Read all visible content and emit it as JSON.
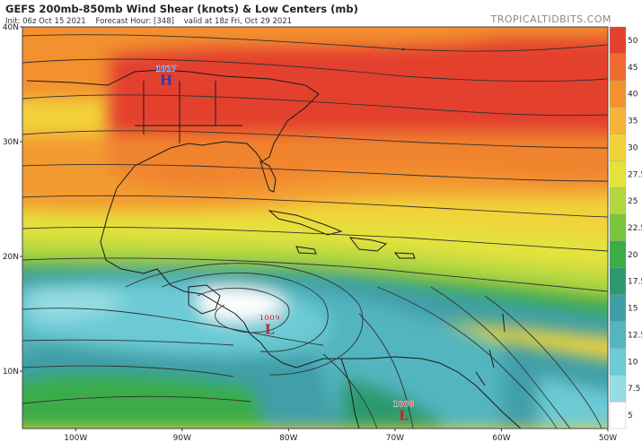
{
  "header": {
    "title": "GEFS 200mb-850mb Wind Shear (knots) & Low Centers (mb)",
    "init": "Init: 06z Oct 15 2021",
    "forecast_hour": "Forecast Hour: [348]",
    "valid": "valid at 18z Fri, Oct 29 2021",
    "brand": "TROPICALTIDBITS.COM"
  },
  "map": {
    "lon_range": [
      -105,
      -50
    ],
    "lat_range": [
      5,
      40
    ],
    "lat_ticks": [
      {
        "value": 40,
        "label": "40N"
      },
      {
        "value": 30,
        "label": "30N"
      },
      {
        "value": 20,
        "label": "20N"
      },
      {
        "value": 10,
        "label": "10N"
      }
    ],
    "lon_ticks": [
      {
        "value": -100,
        "label": "100W"
      },
      {
        "value": -90,
        "label": "90W"
      },
      {
        "value": -80,
        "label": "80W"
      },
      {
        "value": -70,
        "label": "70W"
      },
      {
        "value": -60,
        "label": "60W"
      },
      {
        "value": -50,
        "label": "50W"
      }
    ],
    "pressure_centers": [
      {
        "type": "H",
        "value": "1017",
        "lon": -91.5,
        "lat": 35.5,
        "color": "#2a3fb0"
      },
      {
        "type": "L",
        "value": "1009",
        "lon": -81.8,
        "lat": 13.8,
        "color": "#c0282a"
      },
      {
        "type": "L",
        "value": "1008",
        "lon": -69.2,
        "lat": 6.3,
        "color": "#c0282a"
      }
    ]
  },
  "colorbar": {
    "labels": [
      "50",
      "45",
      "40",
      "35",
      "30",
      "27.5",
      "25",
      "22.5",
      "20",
      "17.5",
      "15",
      "12.5",
      "10",
      "7.5",
      "5"
    ],
    "colors": [
      "#e4412d",
      "#ee6a2e",
      "#f3912f",
      "#f6b33a",
      "#f2d23b",
      "#e4e23c",
      "#b2d83f",
      "#79c53e",
      "#3aac48",
      "#2c9a6e",
      "#3f9fa8",
      "#52b5c0",
      "#6ccbd5",
      "#96dde3",
      "#ffffff"
    ]
  },
  "legend_colors": {
    "land": "#1a1a1a",
    "streamline": "#333333"
  }
}
